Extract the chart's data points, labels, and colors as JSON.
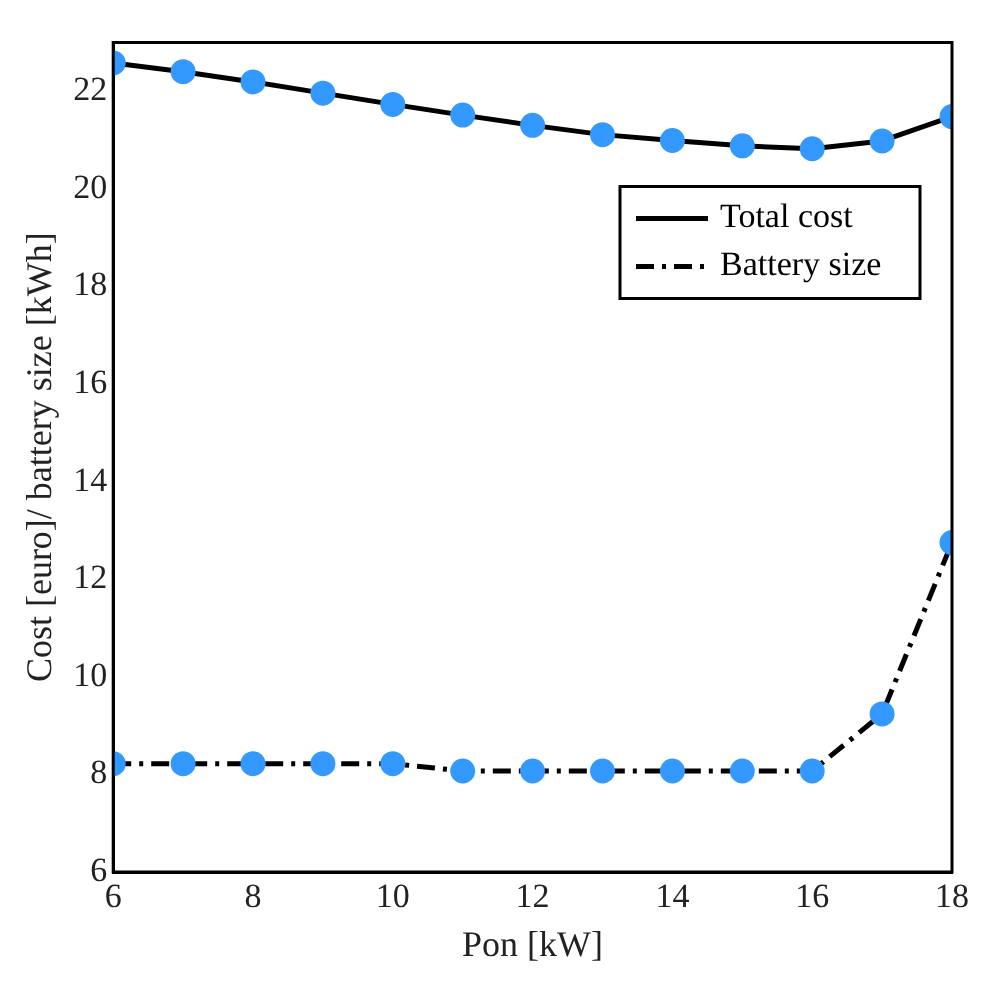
{
  "chart_data": {
    "type": "line",
    "xlabel": "Pon [kW]",
    "ylabel": "Cost [euro]/ battery size [kWh]",
    "x": [
      6,
      7,
      8,
      9,
      10,
      11,
      12,
      13,
      14,
      15,
      16,
      17,
      18
    ],
    "series": [
      {
        "name": "Total cost",
        "color": "#000000",
        "line_style": "solid",
        "colors": [
          "#3399ff",
          "#3399ff",
          "#3399ff",
          "#3399ff",
          "#3399ff",
          "#3399ff",
          "#3399ff",
          "#3399ff",
          "#3399ff",
          "#3399ff",
          "#3399ff",
          "#3399ff",
          "#3399ff"
        ],
        "values": [
          22.58,
          22.4,
          22.19,
          21.96,
          21.73,
          21.51,
          21.3,
          21.11,
          20.99,
          20.88,
          20.82,
          20.98,
          21.48
        ]
      },
      {
        "name": "Battery size",
        "color": "#000000",
        "line_style": "dashdot",
        "colors": [
          "#3399ff",
          "#3399ff",
          "#3399ff",
          "#3399ff",
          "#3399ff",
          "#3399ff",
          "#3399ff",
          "#3399ff",
          "#3399ff",
          "#3399ff",
          "#3399ff",
          "#3399ff",
          "#3399ff"
        ],
        "values": [
          8.22,
          8.22,
          8.22,
          8.22,
          8.22,
          8.07,
          8.07,
          8.07,
          8.07,
          8.07,
          8.07,
          9.24,
          12.75
        ]
      }
    ],
    "marker": "circle",
    "xlim": [
      6,
      18
    ],
    "xticks": [
      6,
      8,
      10,
      12,
      14,
      16,
      18
    ],
    "ylim": [
      6,
      23
    ],
    "yticks": [
      6,
      8,
      10,
      12,
      14,
      16,
      18,
      20,
      22
    ],
    "grid": false,
    "legend": "top right"
  }
}
